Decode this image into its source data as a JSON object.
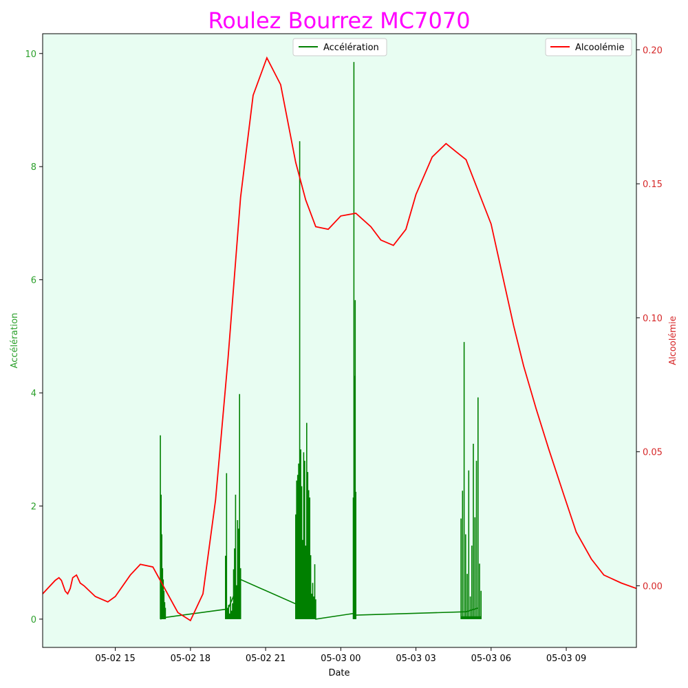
{
  "chart_data": {
    "type": "line",
    "title": "Roulez Bourrez MC7070",
    "xlabel": "Date",
    "x_ticks": [
      "05-02 15",
      "05-02 18",
      "05-02 21",
      "05-03 00",
      "05-03 03",
      "05-03 06",
      "05-03 09"
    ],
    "x_tick_hours": [
      15,
      18,
      21,
      24,
      27,
      30,
      33
    ],
    "xlim_hours": [
      12.1,
      35.8
    ],
    "grid": false,
    "background_color": "#e8fdf2",
    "left_axis": {
      "label": "Accélération",
      "color": "#2ca02c",
      "ylim": [
        -0.5,
        10.35
      ],
      "ticks": [
        0,
        2,
        4,
        6,
        8,
        10
      ]
    },
    "right_axis": {
      "label": "Alcoolémie",
      "color": "#d62728",
      "ylim": [
        -0.023,
        0.206
      ],
      "ticks": [
        0.0,
        0.05,
        0.1,
        0.15,
        0.2
      ],
      "tick_labels": [
        "0.00",
        "0.05",
        "0.10",
        "0.15",
        "0.20"
      ]
    },
    "series": [
      {
        "name": "Accélération",
        "axis": "left",
        "color": "#008000",
        "legend_position": "top-center",
        "baseline": [
          [
            16.8,
            0.0
          ],
          [
            17.0,
            0.03
          ],
          [
            19.5,
            0.18
          ],
          [
            20.0,
            0.7
          ],
          [
            22.3,
            0.25
          ],
          [
            23.0,
            0.0
          ],
          [
            24.5,
            0.1
          ],
          [
            24.6,
            0.07
          ],
          [
            29.0,
            0.13
          ],
          [
            29.5,
            0.2
          ]
        ],
        "bursts": [
          {
            "start": 16.8,
            "end": 17.0,
            "peaks": [
              3.25,
              2.2,
              1.5,
              0.9,
              0.7,
              0.5,
              0.3,
              0.2
            ]
          },
          {
            "start": 19.4,
            "end": 20.0,
            "peaks": [
              1.12,
              2.58,
              0.2,
              0.25,
              0.1,
              0.4,
              0.15,
              0.28,
              0.88,
              1.25,
              2.2,
              0.6,
              1.75,
              1.6,
              3.98,
              0.9
            ]
          },
          {
            "start": 22.2,
            "end": 23.0,
            "peaks": [
              1.85,
              2.45,
              2.55,
              2.75,
              8.45,
              3.0,
              2.35,
              1.4,
              2.95,
              2.8,
              1.3,
              3.47,
              2.6,
              2.28,
              2.15,
              1.13,
              0.45,
              0.64,
              0.4,
              0.97,
              0.35
            ]
          },
          {
            "start": 24.5,
            "end": 24.6,
            "peaks": [
              2.15,
              9.85,
              4.3,
              5.64,
              2.25
            ]
          },
          {
            "start": 28.8,
            "end": 29.6,
            "peaks": [
              1.78,
              2.27,
              4.9,
              1.5,
              0.8,
              2.63,
              0.4,
              1.3,
              3.1,
              1.8,
              2.8,
              3.92,
              0.98,
              0.5
            ]
          }
        ]
      },
      {
        "name": "Alcoolémie",
        "axis": "right",
        "color": "#ff0000",
        "legend_position": "top-right",
        "x": [
          12.1,
          12.6,
          12.75,
          12.85,
          13.0,
          13.1,
          13.2,
          13.3,
          13.45,
          13.6,
          13.75,
          14.2,
          14.7,
          15.0,
          15.6,
          16.0,
          16.5,
          17.5,
          18.0,
          18.5,
          19.0,
          19.5,
          20.0,
          20.5,
          21.05,
          21.6,
          22.2,
          22.6,
          23.0,
          23.5,
          24.0,
          24.6,
          25.2,
          25.6,
          26.1,
          26.6,
          27.0,
          27.65,
          28.2,
          28.6,
          29.0,
          30.0,
          30.9,
          31.3,
          31.8,
          32.3,
          32.9,
          33.4,
          34.0,
          34.5,
          35.2,
          35.8
        ],
        "y": [
          -0.003,
          0.002,
          0.003,
          0.002,
          -0.002,
          -0.003,
          -0.001,
          0.003,
          0.004,
          0.001,
          0.0,
          -0.004,
          -0.006,
          -0.004,
          0.004,
          0.008,
          0.007,
          -0.01,
          -0.013,
          -0.003,
          0.032,
          0.085,
          0.145,
          0.183,
          0.197,
          0.187,
          0.158,
          0.144,
          0.134,
          0.133,
          0.138,
          0.139,
          0.134,
          0.129,
          0.127,
          0.133,
          0.146,
          0.16,
          0.165,
          0.162,
          0.159,
          0.135,
          0.097,
          0.082,
          0.066,
          0.051,
          0.034,
          0.02,
          0.01,
          0.004,
          0.001,
          -0.001
        ]
      }
    ]
  }
}
